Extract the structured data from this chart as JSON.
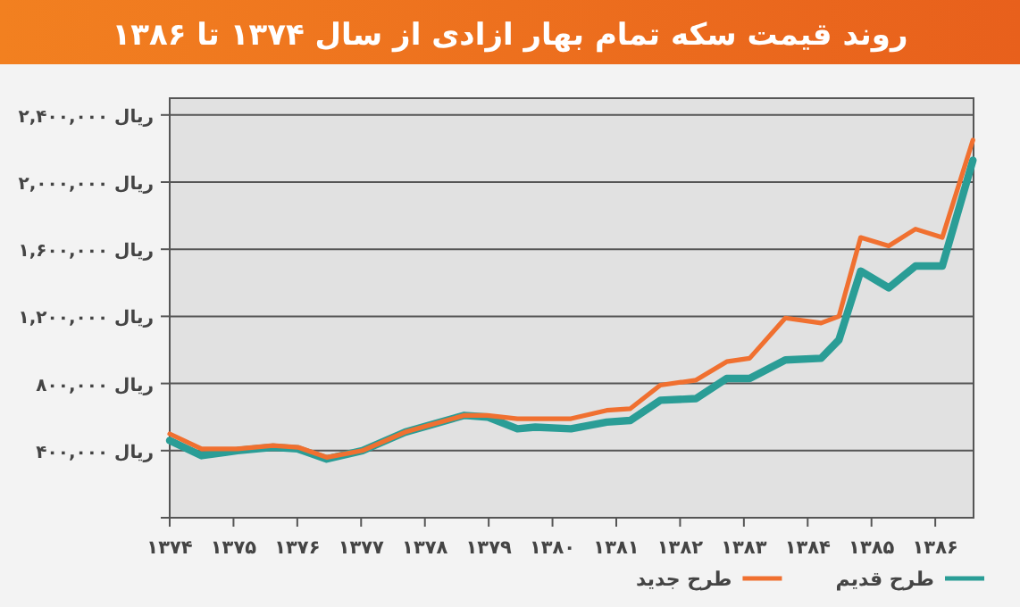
{
  "chart_data": {
    "type": "line",
    "title": "روند قیمت سکه تمام بهار ازادی از سال ۱۳۷۴ تا ۱۳۸۶",
    "series": [
      {
        "name": "طرح قدیم",
        "color": "#2a9d96",
        "x": [
          1374,
          1374.5,
          1375.06,
          1375.62,
          1376.01,
          1376.46,
          1377.02,
          1377.69,
          1378.06,
          1378.62,
          1378.98,
          1379.45,
          1379.73,
          1380.29,
          1380.85,
          1381.22,
          1381.69,
          1382.25,
          1382.73,
          1383.09,
          1383.65,
          1384.21,
          1384.49,
          1384.83,
          1385.27,
          1385.69,
          1386.11,
          1386.59
        ],
        "values": [
          460000,
          370000,
          400000,
          420000,
          410000,
          350000,
          400000,
          510000,
          550000,
          610000,
          600000,
          530000,
          540000,
          530000,
          570000,
          580000,
          700000,
          710000,
          830000,
          830000,
          940000,
          950000,
          1060000,
          1470000,
          1370000,
          1500000,
          1500000,
          2130000
        ]
      },
      {
        "name": "طرح جدید",
        "color": "#f07030",
        "x": [
          1374,
          1374.5,
          1375.06,
          1375.62,
          1376.01,
          1376.46,
          1377.02,
          1377.69,
          1378.06,
          1378.62,
          1378.98,
          1379.45,
          1379.73,
          1380.29,
          1380.85,
          1381.22,
          1381.69,
          1382.25,
          1382.73,
          1383.09,
          1383.65,
          1384.21,
          1384.49,
          1384.83,
          1385.27,
          1385.69,
          1386.11,
          1386.59
        ],
        "values": [
          500000,
          410000,
          410000,
          430000,
          420000,
          360000,
          400000,
          510000,
          550000,
          610000,
          610000,
          590000,
          590000,
          590000,
          640000,
          650000,
          790000,
          820000,
          930000,
          950000,
          1190000,
          1160000,
          1200000,
          1670000,
          1620000,
          1720000,
          1670000,
          2250000
        ]
      }
    ],
    "xlim": [
      1374,
      1386.6
    ],
    "xticks": [
      {
        "value": 1374,
        "label": "۱۳۷۴"
      },
      {
        "value": 1375,
        "label": "۱۳۷۵"
      },
      {
        "value": 1376,
        "label": "۱۳۷۶"
      },
      {
        "value": 1377,
        "label": "۱۳۷۷"
      },
      {
        "value": 1378,
        "label": "۱۳۷۸"
      },
      {
        "value": 1379,
        "label": "۱۳۷۹"
      },
      {
        "value": 1380,
        "label": "۱۳۸۰"
      },
      {
        "value": 1381,
        "label": "۱۳۸۱"
      },
      {
        "value": 1382,
        "label": "۱۳۸۲"
      },
      {
        "value": 1383,
        "label": "۱۳۸۳"
      },
      {
        "value": 1384,
        "label": "۱۳۸۴"
      },
      {
        "value": 1385,
        "label": "۱۳۸۵"
      },
      {
        "value": 1386,
        "label": "۱۳۸۶"
      }
    ],
    "ylim": [
      0,
      2500000
    ],
    "yticks": [
      {
        "value": 0,
        "label": null
      },
      {
        "value": 400000,
        "label": "۴۰۰,۰۰۰ ریال"
      },
      {
        "value": 800000,
        "label": "۸۰۰,۰۰۰ ریال"
      },
      {
        "value": 1200000,
        "label": "۱,۲۰۰,۰۰۰ ریال"
      },
      {
        "value": 1600000,
        "label": "۱,۶۰۰,۰۰۰ ریال"
      },
      {
        "value": 2000000,
        "label": "۲,۰۰۰,۰۰۰ ریال"
      },
      {
        "value": 2400000,
        "label": "۲,۴۰۰,۰۰۰ ریال"
      }
    ],
    "grid": "y",
    "legend": "bottom",
    "line_style": "solid",
    "marker": "none"
  }
}
